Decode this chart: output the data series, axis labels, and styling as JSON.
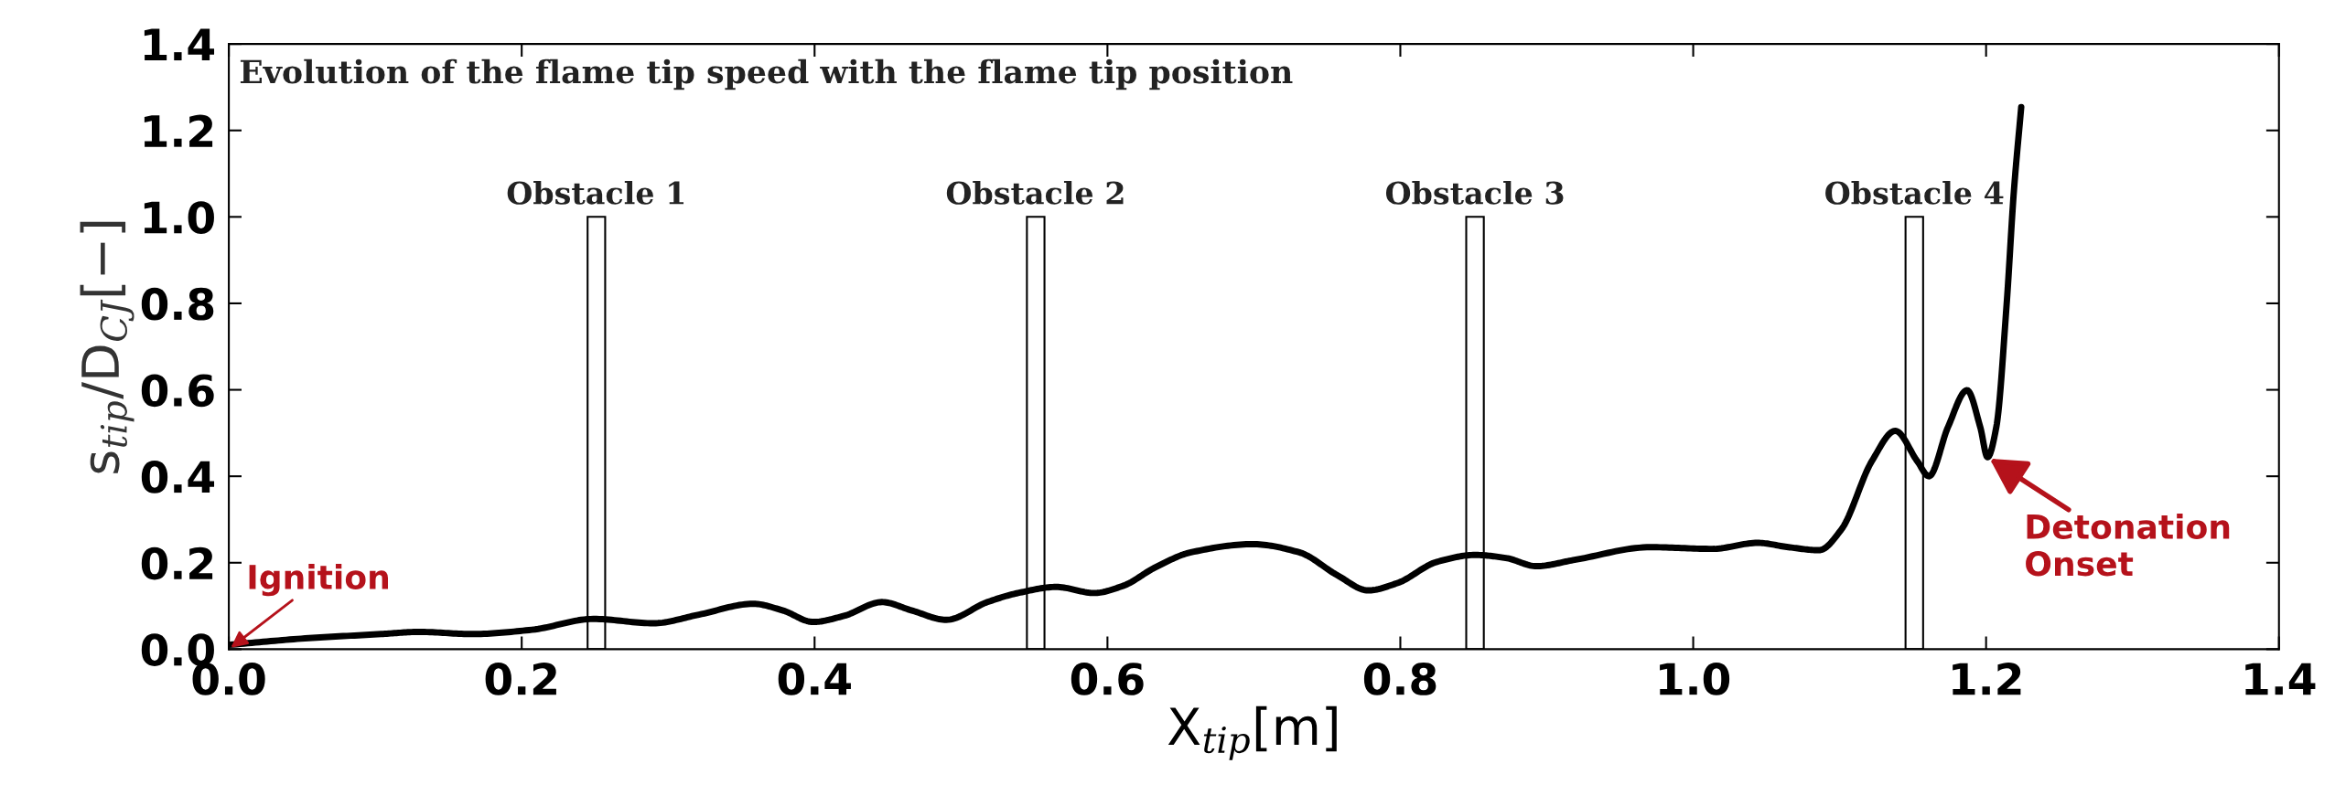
{
  "chart_data": {
    "type": "line",
    "title": "Evolution of the flame tip speed with the flame tip position",
    "xlabel": "X$_{tip}$[m]",
    "ylabel": "s$_{tip}$/D$_{CJ}$[−]",
    "series": [
      {
        "type": "line",
        "color": "#000000",
        "x": [
          0,
          0.052,
          0.104,
          0.13,
          0.166,
          0.207,
          0.249,
          0.29,
          0.321,
          0.358,
          0.378,
          0.399,
          0.42,
          0.446,
          0.466,
          0.49,
          0.518,
          0.539,
          0.565,
          0.591,
          0.611,
          0.632,
          0.657,
          0.699,
          0.731,
          0.757,
          0.778,
          0.798,
          0.825,
          0.851,
          0.872,
          0.893,
          0.918,
          0.971,
          1.013,
          1.044,
          1.065,
          1.086,
          1.101,
          1.122,
          1.138,
          1.153,
          1.161,
          1.174,
          1.187,
          1.196,
          1.201,
          1.207,
          1.214,
          1.219,
          1.224
        ],
        "values": [
          0.01,
          0.025,
          0.035,
          0.04,
          0.035,
          0.045,
          0.07,
          0.06,
          0.08,
          0.105,
          0.09,
          0.063,
          0.077,
          0.109,
          0.09,
          0.068,
          0.109,
          0.13,
          0.144,
          0.13,
          0.147,
          0.188,
          0.224,
          0.243,
          0.224,
          0.171,
          0.136,
          0.153,
          0.202,
          0.218,
          0.211,
          0.192,
          0.206,
          0.236,
          0.232,
          0.246,
          0.236,
          0.229,
          0.276,
          0.435,
          0.505,
          0.435,
          0.4,
          0.514,
          0.599,
          0.514,
          0.444,
          0.514,
          0.796,
          1.06,
          1.254
        ]
      },
      {
        "type": "bar",
        "color": "#ffffff",
        "x": [
          0.251,
          0.551,
          0.851,
          1.151
        ],
        "values": [
          1.0,
          1.0,
          1.0,
          1.0
        ],
        "value_labels": [
          "Obstacle 1",
          "Obstacle 2",
          "Obstacle 3",
          "Obstacle 4"
        ]
      }
    ],
    "annotations": [
      {
        "text": "Ignition",
        "x": 0,
        "y": 0
      },
      {
        "text": "Detonation\nOnset",
        "x": 1.201,
        "y": 0.444
      }
    ],
    "xlim": [
      0,
      1.4
    ],
    "ylim": [
      0,
      1.4
    ],
    "xticks": [
      {
        "value": 0,
        "label": "0.0"
      },
      0.2,
      0.4,
      0.6,
      0.8,
      {
        "value": 1,
        "label": "1.0"
      },
      1.2,
      1.4
    ],
    "yticks": [
      {
        "value": 0,
        "label": "0.0"
      },
      0.2,
      0.4,
      0.6,
      0.8,
      {
        "value": 1,
        "label": "1.0"
      },
      1.2,
      1.4
    ],
    "grid": false,
    "legend": false,
    "marker": "none",
    "line_style": "solid"
  }
}
